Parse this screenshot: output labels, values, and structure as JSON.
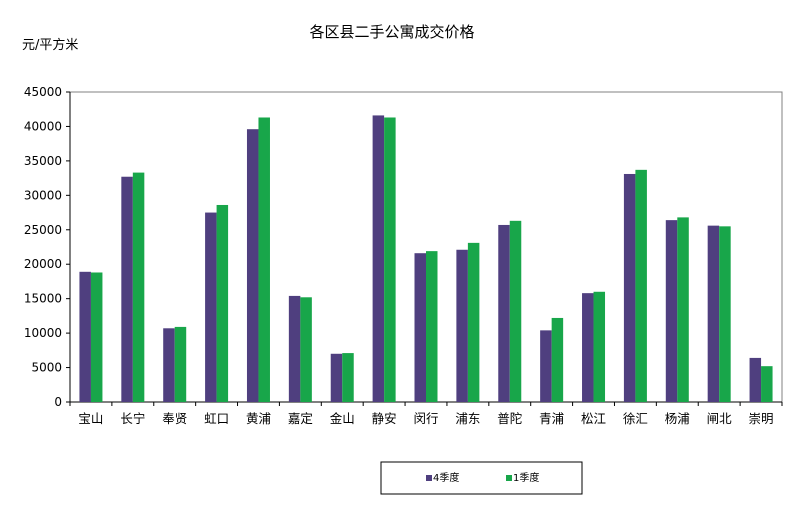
{
  "chart_data": {
    "type": "bar",
    "title": "各区县二手公寓成交价格",
    "ylabel": "元/平方米",
    "xlabel": "",
    "ylim": [
      0,
      45000
    ],
    "ytick_step": 5000,
    "grid": false,
    "legend_position": "bottom",
    "categories": [
      "宝山",
      "长宁",
      "奉贤",
      "虹口",
      "黄浦",
      "嘉定",
      "金山",
      "静安",
      "闵行",
      "浦东",
      "普陀",
      "青浦",
      "松江",
      "徐汇",
      "杨浦",
      "闸北",
      "崇明"
    ],
    "series": [
      {
        "name": "4季度",
        "color": "#4F3F7F",
        "values": [
          18900,
          32700,
          10700,
          27500,
          39600,
          15400,
          7000,
          41600,
          21600,
          22100,
          25700,
          10400,
          15800,
          33100,
          26400,
          25600,
          6400
        ]
      },
      {
        "name": "1季度",
        "color": "#18A64A",
        "values": [
          18800,
          33300,
          10900,
          28600,
          41300,
          15200,
          7100,
          41300,
          21900,
          23100,
          26300,
          12200,
          16000,
          33700,
          26800,
          25500,
          5200
        ]
      }
    ]
  }
}
